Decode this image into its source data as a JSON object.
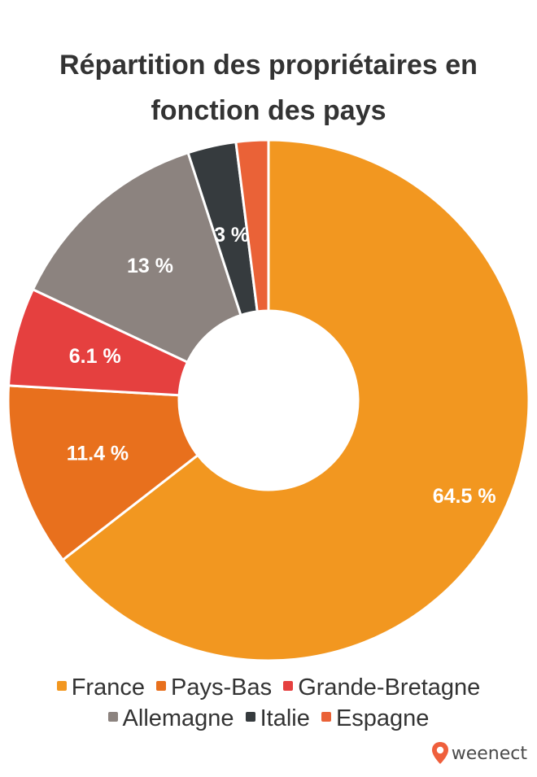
{
  "title_lines": [
    "Répartition des propriétaires en",
    "fonction des pays"
  ],
  "brand": {
    "name": "weenect",
    "color": "#ef5f3c",
    "icon": "location-pin-icon"
  },
  "chart_data": {
    "type": "pie",
    "donut": true,
    "title": "Répartition des propriétaires en fonction des pays",
    "legend_position": "bottom",
    "slices": [
      {
        "name": "France",
        "value": 64.5,
        "label": "64.5 %",
        "color": "#f29720"
      },
      {
        "name": "Pays-Bas",
        "value": 11.4,
        "label": "11.4 %",
        "color": "#e8701d"
      },
      {
        "name": "Grande-Bretagne",
        "value": 6.1,
        "label": "6.1 %",
        "color": "#e5403f"
      },
      {
        "name": "Allemagne",
        "value": 13,
        "label": "13 %",
        "color": "#8c837f"
      },
      {
        "name": "Italie",
        "value": 3,
        "label": "3 %",
        "color": "#363b3e"
      },
      {
        "name": "Espagne",
        "value": 2,
        "label": "",
        "color": "#ea6237"
      }
    ]
  },
  "legend_rows": [
    [
      {
        "label": "France",
        "color": "#f29720"
      },
      {
        "label": "Pays-Bas",
        "color": "#e8701d"
      },
      {
        "label": "Grande-Bretagne",
        "color": "#e5403f"
      }
    ],
    [
      {
        "label": "Allemagne",
        "color": "#8c837f"
      },
      {
        "label": "Italie",
        "color": "#363b3e"
      },
      {
        "label": "Espagne",
        "color": "#ea6237"
      }
    ]
  ]
}
